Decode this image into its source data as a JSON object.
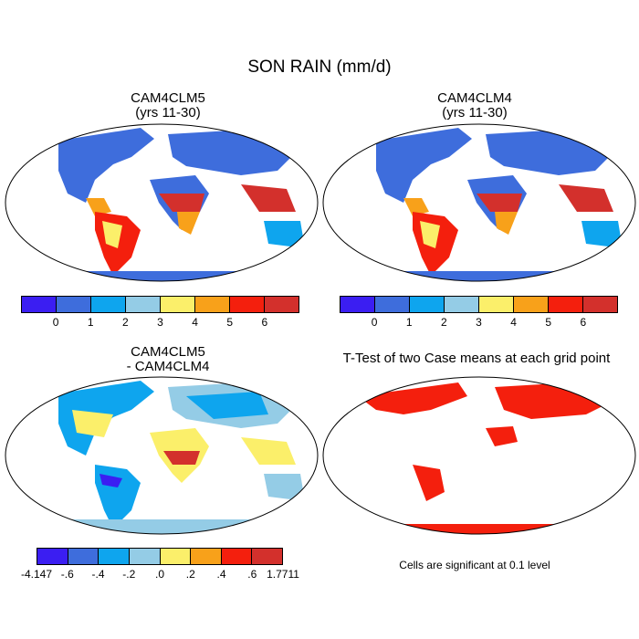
{
  "title": "SON RAIN (mm/d)",
  "panels": {
    "p1": {
      "title1": "CAM4CLM5",
      "title2": "(yrs 11-30)"
    },
    "p2": {
      "title1": "CAM4CLM4",
      "title2": "(yrs 11-30)"
    },
    "p3": {
      "title1": "CAM4CLM5",
      "title2": "- CAM4CLM4"
    },
    "p4": {
      "title1": "T-Test of two Case means at each grid point",
      "note": "Cells are significant at 0.1 level"
    }
  },
  "legend_abs": {
    "colors": [
      "#3b1ef2",
      "#3e6ddc",
      "#0ea5ee",
      "#94cce6",
      "#fbef6a",
      "#f8a11a",
      "#f41f0d",
      "#d3302c"
    ],
    "labels": [
      "0",
      "1",
      "2",
      "3",
      "4",
      "5",
      "6"
    ]
  },
  "legend_diff": {
    "colors": [
      "#3b1ef2",
      "#3e6ddc",
      "#0ea5ee",
      "#94cce6",
      "#fbef6a",
      "#f8a11a",
      "#f41f0d",
      "#d3302c"
    ],
    "labels": [
      "-4.147",
      "-.6",
      "-.4",
      "-.2",
      ".0",
      ".2",
      ".4",
      ".6",
      "1.7711"
    ]
  }
}
